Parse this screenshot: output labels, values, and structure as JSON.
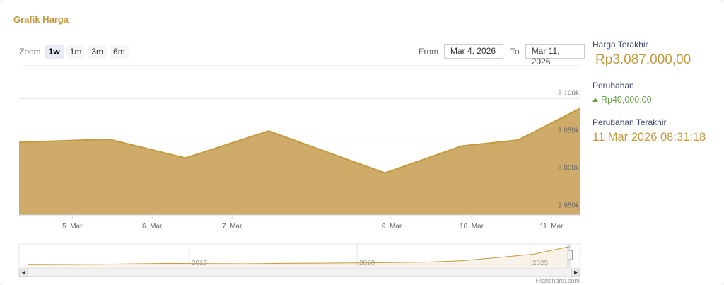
{
  "title": "Grafik Harga",
  "zoom": {
    "label": "Zoom",
    "buttons": [
      "1w",
      "1m",
      "3m",
      "6m"
    ],
    "active": "1w"
  },
  "range": {
    "from_label": "From",
    "from_value": "Mar 4, 2026",
    "to_label": "To",
    "to_value": "Mar 11, 2026"
  },
  "side": {
    "last_price_label": "Harga Terakhir",
    "last_price_value": "Rp3.087.000,00",
    "change_label": "Perubahan",
    "change_value": "Rp40,000.00",
    "last_change_label": "Perubahan Terakhir",
    "last_change_value": "11 Mar 2026 08:31:18"
  },
  "colors": {
    "fill": "#cfab6a",
    "line": "#c39a3d",
    "change_up": "#6aa14b",
    "label_blue": "#3f4a75"
  },
  "credits": "Highcharts.com",
  "chart_data": {
    "type": "area",
    "x": [
      "2026-03-04 08:00",
      "2026-03-05 11:00",
      "2026-03-06 10:00",
      "2026-03-07 11:00",
      "2026-03-08 22:00",
      "2026-03-09 21:00",
      "2026-03-10 14:00",
      "2026-03-11 08:31"
    ],
    "values": [
      3042000,
      3046000,
      3021000,
      3057000,
      3001000,
      3037000,
      3045000,
      3087000
    ],
    "y_ticks": [
      2950000,
      3000000,
      3050000,
      3100000
    ],
    "y_tick_labels": [
      "2 950k",
      "3 000k",
      "3 050k",
      "3 100k"
    ],
    "ylim": [
      2945000,
      3144000
    ],
    "x_tick_labels": [
      "5. Mar",
      "6. Mar",
      "7. Mar",
      "9. Mar",
      "10. Mar",
      "11. Mar"
    ],
    "x_tick_dates": [
      "2026-03-05",
      "2026-03-06",
      "2026-03-07",
      "2026-03-09",
      "2026-03-10",
      "2026-03-11"
    ],
    "grid": true,
    "navigator": {
      "year_labels": [
        "2015",
        "2020",
        "2025"
      ],
      "series_shape": [
        0.12,
        0.13,
        0.14,
        0.16,
        0.18,
        0.17,
        0.16,
        0.18,
        0.19,
        0.2,
        0.22,
        0.24,
        0.3,
        0.45,
        0.6,
        0.95
      ]
    }
  }
}
